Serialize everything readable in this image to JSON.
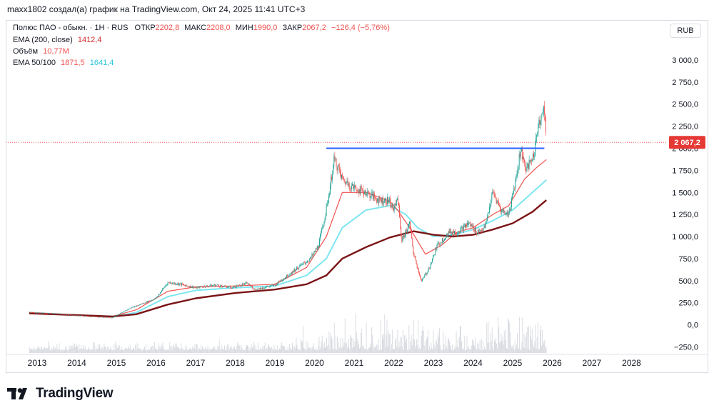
{
  "header": {
    "title": "maxx1802 создал(а) график на TradingView.com, Окт 24, 2025 11:41 UTC+3"
  },
  "legend": {
    "symbol": "Полюс ПАО - обыкн. · 1Н · RUS",
    "open_label": "ОТКР",
    "open": "2202,8",
    "high_label": "МАКС",
    "high": "2208,0",
    "low_label": "МИН",
    "low": "1990,0",
    "close_label": "ЗАКР",
    "close": "2067,2",
    "change": "−126,4 (−5,76%)",
    "ema200_label": "EMA (200, close)",
    "ema200": "1412,4",
    "volume_label": "Объём",
    "volume": "10,77M",
    "ema50_100_label": "EMA 50/100",
    "ema50": "1871,5",
    "ema100": "1641,4"
  },
  "currency_button": "RUB",
  "brand": {
    "name": "TradingView",
    "logo_icon": "tradingview-logo-icon"
  },
  "colors": {
    "ema200": "#7b1416",
    "ema50": "#ef5350",
    "ema100": "#7de6f0",
    "level_line": "#2962ff",
    "price_tag": "#e53935",
    "up": "#26a69a",
    "down": "#ef5350"
  },
  "chart_data": {
    "type": "candlestick",
    "title": "Полюс ПАО - обыкн.",
    "interval": "1Н",
    "x_ticks": [
      "2013",
      "2014",
      "2015",
      "2016",
      "2017",
      "2018",
      "2019",
      "2020",
      "2021",
      "2022",
      "2023",
      "2024",
      "2025",
      "2026",
      "2027",
      "2028"
    ],
    "y_ticks": [
      "3 000,0",
      "2 750,0",
      "2 500,0",
      "2 250,0",
      "2 000,0",
      "1 750,0",
      "1 500,0",
      "1 250,0",
      "1 000,0",
      "750,0",
      "500,0",
      "250,0",
      "0,0",
      "−250,0"
    ],
    "ylim": [
      -250,
      3000
    ],
    "last_price": 2067.2,
    "last_price_label": "2 067,2",
    "horizontal_level": {
      "value": 2000,
      "from": 2020.3,
      "to": 2025.8
    },
    "price_path": [
      [
        2012.8,
        140
      ],
      [
        2013.5,
        125
      ],
      [
        2014.0,
        105
      ],
      [
        2014.5,
        90
      ],
      [
        2014.9,
        80
      ],
      [
        2015.3,
        180
      ],
      [
        2015.6,
        230
      ],
      [
        2016.0,
        300
      ],
      [
        2016.3,
        480
      ],
      [
        2016.6,
        460
      ],
      [
        2017.0,
        420
      ],
      [
        2017.5,
        450
      ],
      [
        2017.9,
        420
      ],
      [
        2018.3,
        470
      ],
      [
        2018.5,
        400
      ],
      [
        2019.0,
        450
      ],
      [
        2019.5,
        620
      ],
      [
        2019.9,
        750
      ],
      [
        2020.1,
        900
      ],
      [
        2020.3,
        1300
      ],
      [
        2020.5,
        1880
      ],
      [
        2020.7,
        1650
      ],
      [
        2021.0,
        1550
      ],
      [
        2021.3,
        1500
      ],
      [
        2021.6,
        1420
      ],
      [
        2021.9,
        1400
      ],
      [
        2022.0,
        1300
      ],
      [
        2022.1,
        1450
      ],
      [
        2022.2,
        950
      ],
      [
        2022.4,
        1150
      ],
      [
        2022.5,
        800
      ],
      [
        2022.7,
        490
      ],
      [
        2022.9,
        650
      ],
      [
        2023.1,
        900
      ],
      [
        2023.4,
        1050
      ],
      [
        2023.6,
        1050
      ],
      [
        2023.9,
        1150
      ],
      [
        2024.1,
        1050
      ],
      [
        2024.3,
        1100
      ],
      [
        2024.5,
        1500
      ],
      [
        2024.7,
        1300
      ],
      [
        2024.9,
        1250
      ],
      [
        2025.1,
        1700
      ],
      [
        2025.2,
        1990
      ],
      [
        2025.35,
        1750
      ],
      [
        2025.55,
        1950
      ],
      [
        2025.65,
        2300
      ],
      [
        2025.8,
        2440
      ],
      [
        2025.85,
        2067
      ]
    ],
    "ema50_path": [
      [
        2012.8,
        140
      ],
      [
        2014.0,
        110
      ],
      [
        2014.9,
        95
      ],
      [
        2015.5,
        170
      ],
      [
        2016.3,
        380
      ],
      [
        2017.0,
        430
      ],
      [
        2018.0,
        440
      ],
      [
        2019.0,
        460
      ],
      [
        2019.8,
        650
      ],
      [
        2020.3,
        1000
      ],
      [
        2020.7,
        1500
      ],
      [
        2021.3,
        1500
      ],
      [
        2021.9,
        1400
      ],
      [
        2022.1,
        1300
      ],
      [
        2022.4,
        1100
      ],
      [
        2022.8,
        800
      ],
      [
        2023.2,
        900
      ],
      [
        2023.6,
        1050
      ],
      [
        2024.0,
        1100
      ],
      [
        2024.5,
        1250
      ],
      [
        2024.9,
        1350
      ],
      [
        2025.3,
        1650
      ],
      [
        2025.6,
        1780
      ],
      [
        2025.85,
        1871.5
      ]
    ],
    "ema100_path": [
      [
        2012.8,
        140
      ],
      [
        2014.0,
        110
      ],
      [
        2014.9,
        90
      ],
      [
        2015.5,
        140
      ],
      [
        2016.3,
        320
      ],
      [
        2017.0,
        390
      ],
      [
        2018.0,
        420
      ],
      [
        2019.0,
        440
      ],
      [
        2019.8,
        560
      ],
      [
        2020.3,
        750
      ],
      [
        2020.7,
        1100
      ],
      [
        2021.3,
        1300
      ],
      [
        2021.9,
        1350
      ],
      [
        2022.3,
        1250
      ],
      [
        2022.6,
        1100
      ],
      [
        2023.0,
        1000
      ],
      [
        2023.5,
        1020
      ],
      [
        2024.0,
        1080
      ],
      [
        2024.5,
        1180
      ],
      [
        2025.0,
        1300
      ],
      [
        2025.5,
        1500
      ],
      [
        2025.85,
        1641.4
      ]
    ],
    "ema200_path": [
      [
        2012.8,
        130
      ],
      [
        2014.0,
        110
      ],
      [
        2014.9,
        95
      ],
      [
        2015.5,
        120
      ],
      [
        2016.3,
        230
      ],
      [
        2017.0,
        300
      ],
      [
        2018.0,
        360
      ],
      [
        2019.0,
        400
      ],
      [
        2019.8,
        460
      ],
      [
        2020.3,
        560
      ],
      [
        2020.7,
        750
      ],
      [
        2021.3,
        880
      ],
      [
        2021.9,
        990
      ],
      [
        2022.5,
        1060
      ],
      [
        2023.0,
        1020
      ],
      [
        2023.5,
        1000
      ],
      [
        2024.0,
        1020
      ],
      [
        2024.5,
        1080
      ],
      [
        2025.0,
        1150
      ],
      [
        2025.5,
        1280
      ],
      [
        2025.85,
        1412.4
      ]
    ]
  }
}
